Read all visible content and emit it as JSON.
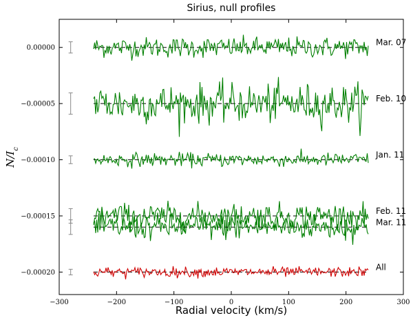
{
  "chart_data": {
    "type": "line",
    "title": "Sirius, null profiles",
    "xlabel": "Radial velocity (km/s)",
    "ylabel": "N/I_c",
    "xlim": [
      -300,
      300
    ],
    "ylim": [
      -0.00022,
      2.5e-05
    ],
    "xticks": [
      -300,
      -200,
      -100,
      0,
      100,
      200,
      300
    ],
    "xtick_labels": [
      "−300",
      "−200",
      "−100",
      "0",
      "100",
      "200",
      "300"
    ],
    "yticks": [
      0.0,
      -5e-05,
      -0.0001,
      -0.00015,
      -0.0002
    ],
    "ytick_labels": [
      "0.00000",
      "−0.00005",
      "−0.00010",
      "−0.00015",
      "−0.00020"
    ],
    "grid": false,
    "x_range": [
      -240,
      240
    ],
    "error_bar_x": -280,
    "series": [
      {
        "name": "Mar. 07",
        "offset": 0.0,
        "noise": 4.5e-06,
        "errbar": 5e-06,
        "color": "#007f00"
      },
      {
        "name": "Feb. 10",
        "offset": -5e-05,
        "noise": 8.5e-06,
        "errbar": 9.5e-06,
        "color": "#007f00"
      },
      {
        "name": "Jan. 11",
        "offset": -0.0001,
        "noise": 3e-06,
        "errbar": 3.5e-06,
        "color": "#007f00"
      },
      {
        "name": "Feb. 11",
        "offset": -0.00015,
        "noise": 5.5e-06,
        "errbar": 6.5e-06,
        "color": "#007f00"
      },
      {
        "name": "Mar. 11",
        "offset": -0.00016,
        "noise": 5.5e-06,
        "errbar": 6.5e-06,
        "color": "#007f00"
      },
      {
        "name": "All",
        "offset": -0.0002,
        "noise": 2.2e-06,
        "errbar": 2.5e-06,
        "color": "#d00000"
      }
    ]
  }
}
